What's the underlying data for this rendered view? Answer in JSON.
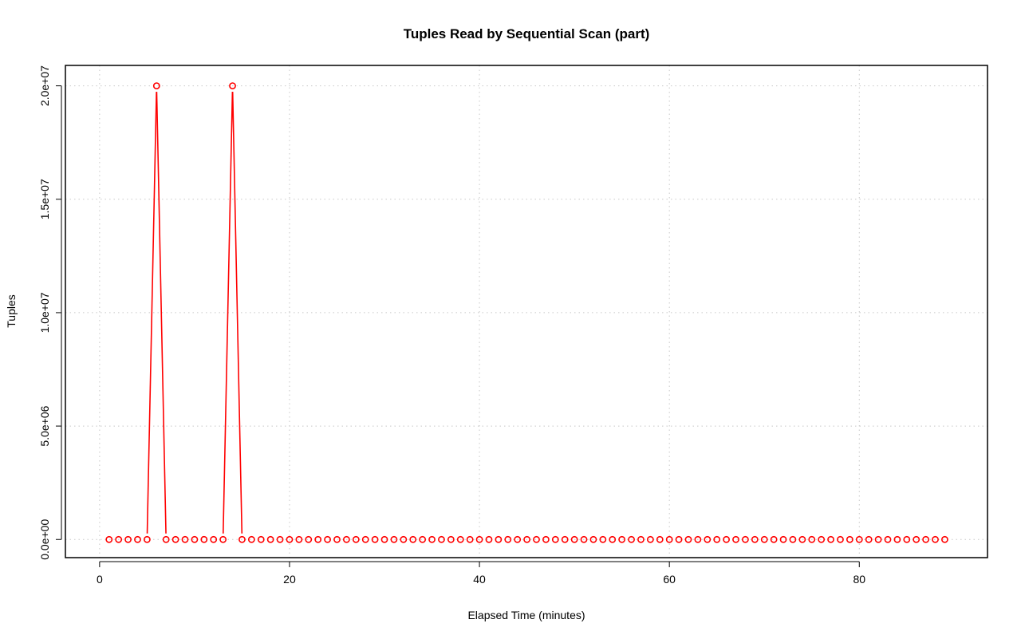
{
  "chart_data": {
    "type": "line",
    "title": "Tuples Read by Sequential Scan (part)",
    "xlabel": "Elapsed Time (minutes)",
    "ylabel": "Tuples",
    "xlim": [
      -3.6,
      93.5
    ],
    "ylim": [
      -800000,
      20900000
    ],
    "x_ticks": [
      0,
      20,
      40,
      60,
      80
    ],
    "x_tick_labels": [
      "0",
      "20",
      "40",
      "60",
      "80"
    ],
    "y_ticks": [
      0,
      5000000,
      10000000,
      15000000,
      20000000
    ],
    "y_tick_labels": [
      "0.0e+00",
      "5.0e+06",
      "1.0e+07",
      "1.5e+07",
      "2.0e+07"
    ],
    "grid": true,
    "legend": "none",
    "series": [
      {
        "color": "#ff0000",
        "marker": "open-circle",
        "x": [
          1,
          2,
          3,
          4,
          5,
          6,
          7,
          8,
          9,
          10,
          11,
          12,
          13,
          14,
          15,
          16,
          17,
          18,
          19,
          20,
          21,
          22,
          23,
          24,
          25,
          26,
          27,
          28,
          29,
          30,
          31,
          32,
          33,
          34,
          35,
          36,
          37,
          38,
          39,
          40,
          41,
          42,
          43,
          44,
          45,
          46,
          47,
          48,
          49,
          50,
          51,
          52,
          53,
          54,
          55,
          56,
          57,
          58,
          59,
          60,
          61,
          62,
          63,
          64,
          65,
          66,
          67,
          68,
          69,
          70,
          71,
          72,
          73,
          74,
          75,
          76,
          77,
          78,
          79,
          80,
          81,
          82,
          83,
          84,
          85,
          86,
          87,
          88,
          89
        ],
        "values": [
          0,
          0,
          0,
          0,
          0,
          20000000,
          0,
          0,
          0,
          0,
          0,
          0,
          0,
          20000000,
          0,
          0,
          0,
          0,
          0,
          0,
          0,
          0,
          0,
          0,
          0,
          0,
          0,
          0,
          0,
          0,
          0,
          0,
          0,
          0,
          0,
          0,
          0,
          0,
          0,
          0,
          0,
          0,
          0,
          0,
          0,
          0,
          0,
          0,
          0,
          0,
          0,
          0,
          0,
          0,
          0,
          0,
          0,
          0,
          0,
          0,
          0,
          0,
          0,
          0,
          0,
          0,
          0,
          0,
          0,
          0,
          0,
          0,
          0,
          0,
          0,
          0,
          0,
          0,
          0,
          0,
          0,
          0,
          0,
          0,
          0,
          0,
          0,
          0,
          0
        ]
      }
    ]
  }
}
